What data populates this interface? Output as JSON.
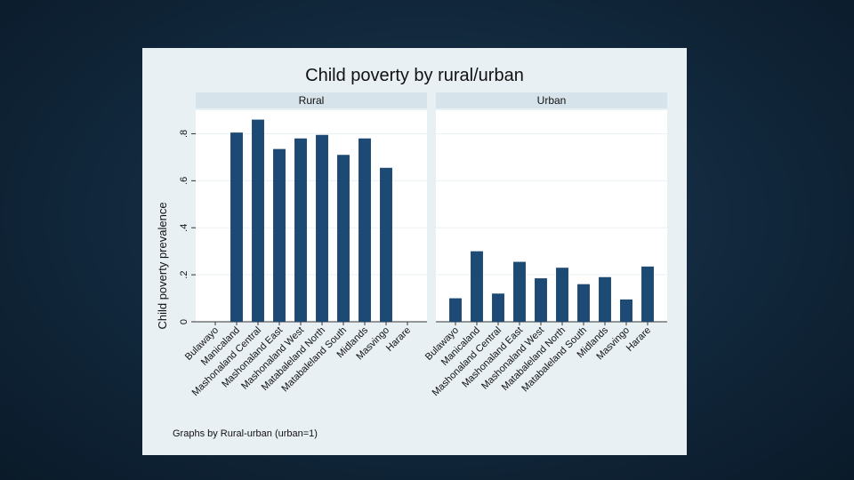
{
  "colors": {
    "bar": "#1c4a74",
    "panel_header": "#d7e3ea",
    "plot_bg": "#ffffff",
    "grid": "#eaf1f5"
  },
  "chart_data": {
    "type": "bar",
    "title": "Child poverty by rural/urban",
    "ylabel": "Child poverty prevalence",
    "ylim": [
      0,
      0.9
    ],
    "yticks": [
      0,
      0.2,
      0.4,
      0.6,
      0.8
    ],
    "ytick_labels": [
      "0",
      ".2",
      ".4",
      ".6",
      ".8"
    ],
    "categories": [
      "Bulawayo",
      "Manicaland",
      "Mashonaland Central",
      "Mashonaland East",
      "Mashonaland West",
      "Matabaleland North",
      "Matabaleland South",
      "Midlands",
      "Masvingo",
      "Harare"
    ],
    "series": [
      {
        "name": "Rural",
        "values": [
          null,
          0.805,
          0.86,
          0.735,
          0.78,
          0.795,
          0.71,
          0.78,
          0.655,
          null
        ]
      },
      {
        "name": "Urban",
        "values": [
          0.1,
          0.3,
          0.12,
          0.255,
          0.185,
          0.23,
          0.16,
          0.19,
          0.095,
          0.235
        ]
      }
    ],
    "note": "Graphs by Rural-urban (urban=1)"
  }
}
